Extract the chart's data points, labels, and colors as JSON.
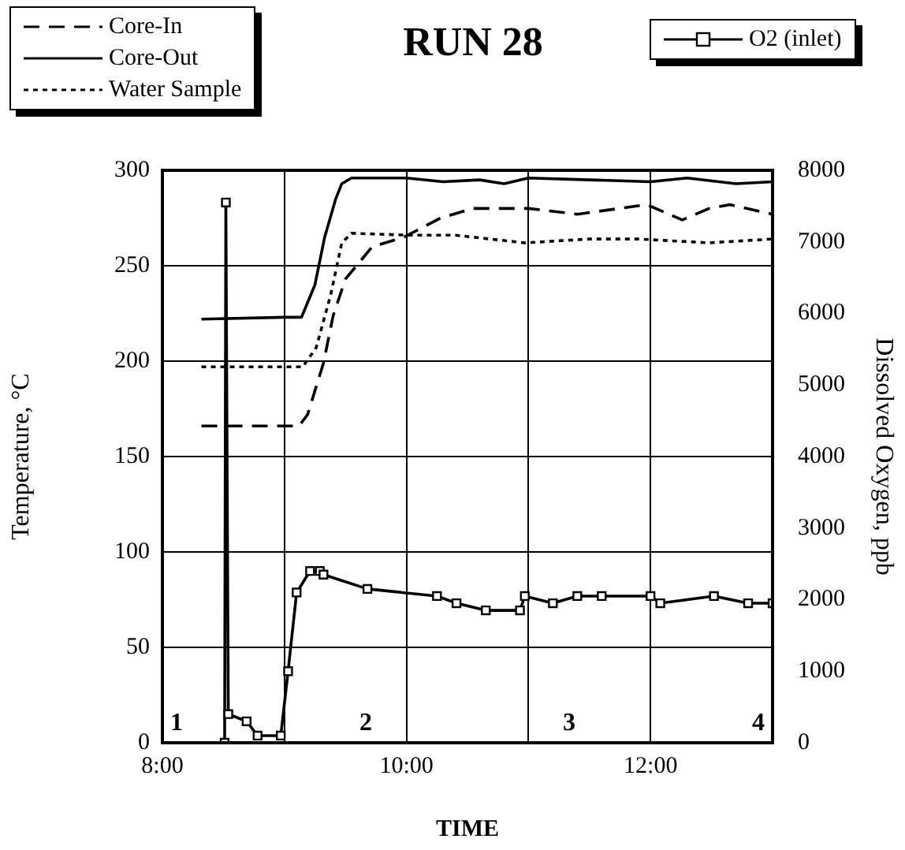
{
  "chart_data": {
    "type": "line",
    "title": "RUN 28",
    "xlabel": "TIME",
    "ylabel": "Temperature, °C",
    "y2label": "Dissolved Oxygen, ppb",
    "xlim": [
      8,
      13
    ],
    "xticks": [
      {
        "value": 8,
        "label": "8:00"
      },
      {
        "value": 9,
        "label": null
      },
      {
        "value": 10,
        "label": "10:00"
      },
      {
        "value": 11,
        "label": null
      },
      {
        "value": 12,
        "label": "12:00"
      },
      {
        "value": 13,
        "label": null
      }
    ],
    "ylim": [
      0,
      300
    ],
    "yticks": [
      0,
      50,
      100,
      150,
      200,
      250,
      300
    ],
    "y2lim": [
      0,
      8000
    ],
    "y2ticks": [
      0,
      1000,
      2000,
      3000,
      4000,
      5000,
      6000,
      7000,
      8000
    ],
    "grid": true,
    "legend": "top",
    "annotations": [
      "1",
      "2",
      "3",
      "4"
    ],
    "series": [
      {
        "name": "Core-In",
        "color": "#000000",
        "line_style": "dashed",
        "marker": "none",
        "x": [
          8.32,
          9.12,
          9.19,
          9.32,
          9.4,
          9.5,
          9.72,
          9.98,
          10.28,
          10.54,
          11.0,
          11.4,
          11.97,
          12.26,
          12.48,
          12.65,
          13.0
        ],
        "values": [
          166,
          166,
          172,
          199,
          224,
          243,
          260,
          265,
          275,
          280,
          280,
          277,
          282,
          274,
          280,
          282,
          277
        ]
      },
      {
        "name": "Core-Out",
        "color": "#000000",
        "line_style": "solid",
        "marker": "none",
        "x": [
          8.32,
          9.0,
          9.14,
          9.25,
          9.33,
          9.42,
          9.47,
          9.55,
          10.0,
          10.3,
          10.6,
          10.8,
          11.0,
          11.5,
          12.0,
          12.3,
          12.7,
          13.0
        ],
        "values": [
          222,
          223,
          223,
          240,
          265,
          285,
          293,
          296,
          296,
          294,
          295,
          293,
          296,
          295,
          294,
          296,
          293,
          294
        ]
      },
      {
        "name": "Water Sample",
        "color": "#000000",
        "line_style": "dotted",
        "marker": "none",
        "x": [
          8.32,
          9.15,
          9.26,
          9.38,
          9.47,
          9.55,
          10.03,
          10.4,
          10.97,
          11.5,
          11.9,
          12.48,
          13.0
        ],
        "values": [
          197,
          197,
          207,
          235,
          262,
          267,
          266,
          266,
          262,
          264,
          264,
          262,
          264
        ]
      },
      {
        "name": "O2 (inlet)",
        "color": "#000000",
        "line_style": "solid",
        "marker": "square",
        "axis": "y2",
        "x": [
          8.51,
          8.52,
          8.54,
          8.69,
          8.78,
          8.97,
          9.03,
          9.1,
          9.21,
          9.29,
          9.32,
          9.68,
          10.25,
          10.41,
          10.65,
          10.93,
          10.97,
          11.2,
          11.4,
          11.6,
          12.0,
          12.08,
          12.52,
          12.8,
          13.0
        ],
        "values": [
          0,
          7550,
          400,
          300,
          100,
          100,
          1000,
          2100,
          2400,
          2400,
          2350,
          2150,
          2050,
          1950,
          1850,
          1850,
          2050,
          1950,
          2050,
          2050,
          2050,
          1950,
          2050,
          1950,
          1950
        ]
      }
    ]
  }
}
